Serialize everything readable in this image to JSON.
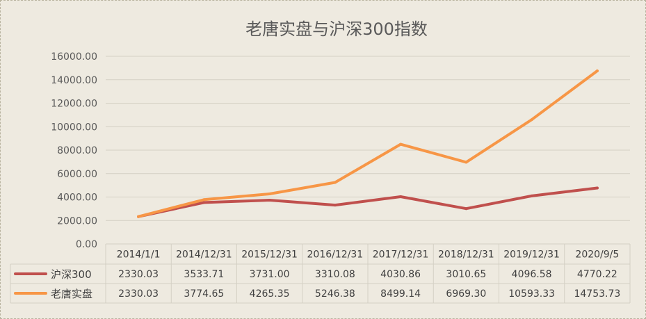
{
  "chart_data": {
    "type": "line",
    "title": "老唐实盘与沪深300指数",
    "categories": [
      "2014/1/1",
      "2014/12/31",
      "2015/12/31",
      "2016/12/31",
      "2017/12/31",
      "2018/12/31",
      "2019/12/31",
      "2020/9/5"
    ],
    "y_ticks": [
      "16000.00",
      "14000.00",
      "12000.00",
      "10000.00",
      "8000.00",
      "6000.00",
      "4000.00",
      "2000.00",
      "0.00"
    ],
    "ylim": [
      0,
      16000
    ],
    "grid": true,
    "legend_placement": "data-table",
    "series": [
      {
        "name": "沪深300",
        "color": "#c0504d",
        "values": [
          2330.03,
          3533.71,
          3731.0,
          3310.08,
          4030.86,
          3010.65,
          4096.58,
          4770.22
        ],
        "labels": [
          "2330.03",
          "3533.71",
          "3731.00",
          "3310.08",
          "4030.86",
          "3010.65",
          "4096.58",
          "4770.22"
        ]
      },
      {
        "name": "老唐实盘",
        "color": "#f79646",
        "values": [
          2330.03,
          3774.65,
          4265.35,
          5246.38,
          8499.14,
          6969.3,
          10593.33,
          14753.73
        ],
        "labels": [
          "2330.03",
          "3774.65",
          "4265.35",
          "5246.38",
          "8499.14",
          "6969.30",
          "10593.33",
          "14753.73"
        ]
      }
    ]
  }
}
